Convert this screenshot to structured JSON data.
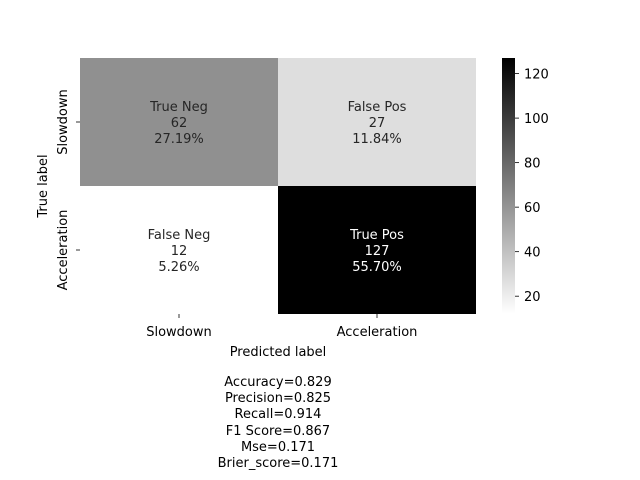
{
  "chart_data": {
    "type": "heatmap",
    "title": "",
    "xlabel": "Predicted label",
    "ylabel": "True label",
    "x_categories": [
      "Slowdown",
      "Acceleration"
    ],
    "y_categories": [
      "Slowdown",
      "Acceleration"
    ],
    "colormap": "Greys",
    "vmin": 12,
    "vmax": 127,
    "cells": [
      [
        {
          "name": "True Neg",
          "count": 62,
          "pct": "27.19%"
        },
        {
          "name": "False Pos",
          "count": 27,
          "pct": "11.84%"
        }
      ],
      [
        {
          "name": "False Neg",
          "count": 12,
          "pct": "5.26%"
        },
        {
          "name": "True Pos",
          "count": 127,
          "pct": "55.70%"
        }
      ]
    ],
    "colorbar": {
      "ticks": [
        20,
        40,
        60,
        80,
        100,
        120
      ]
    }
  },
  "metrics": [
    "Accuracy=0.829",
    "Precision=0.825",
    "Recall=0.914",
    "F1 Score=0.867",
    "Mse=0.171",
    "Brier_score=0.171"
  ]
}
